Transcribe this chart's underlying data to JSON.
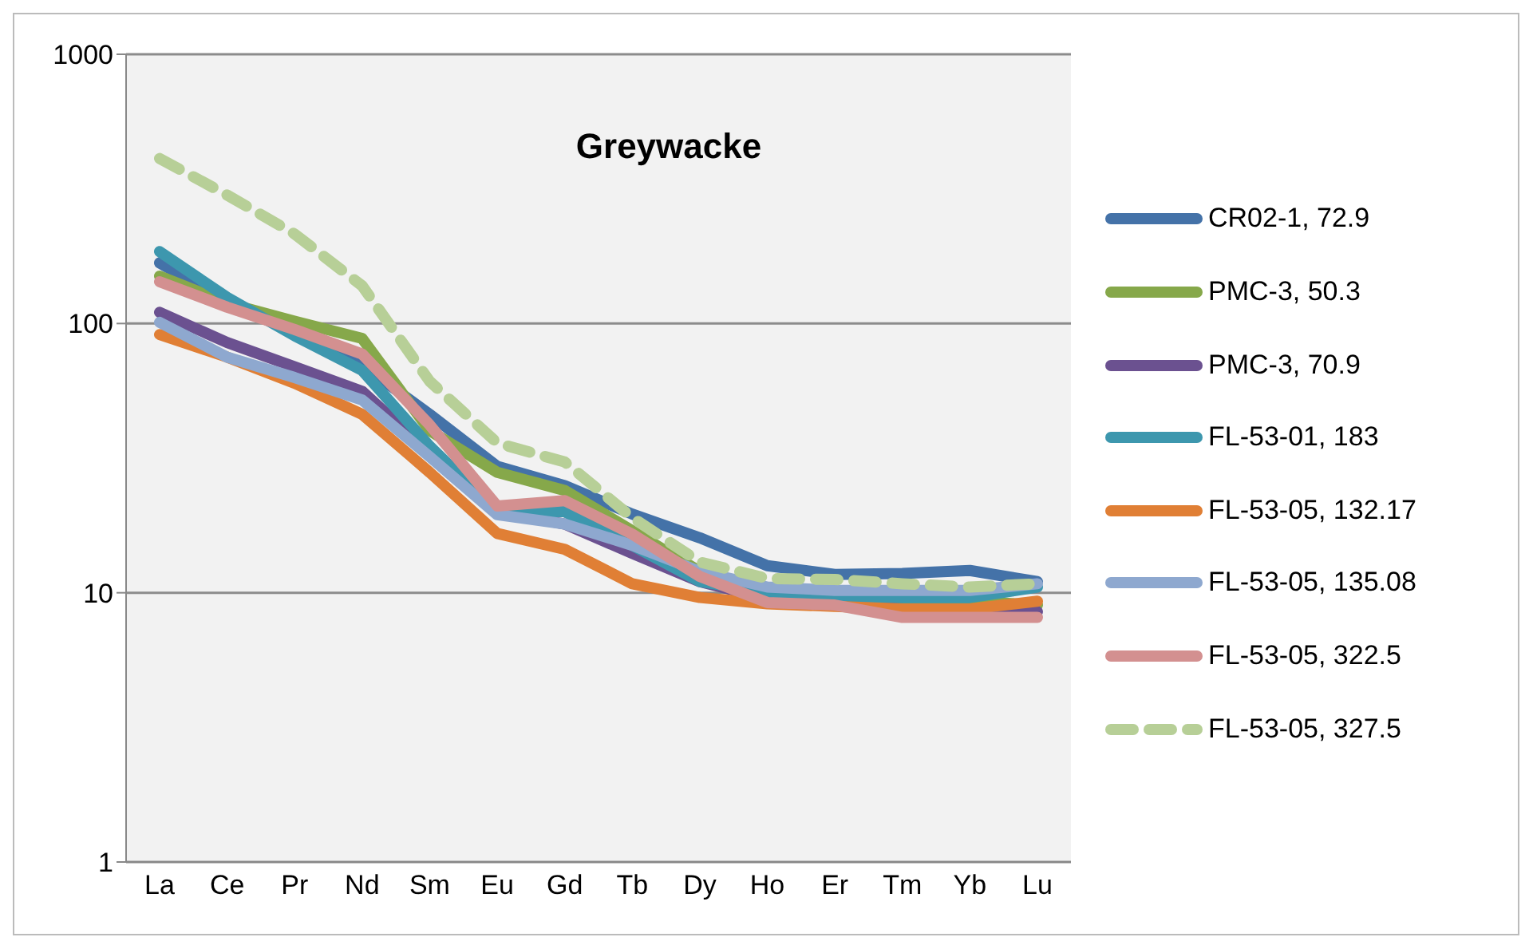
{
  "chart_data": {
    "type": "line",
    "title": "Greywacke",
    "categories": [
      "La",
      "Ce",
      "Pr",
      "Nd",
      "Sm",
      "Eu",
      "Gd",
      "Tb",
      "Dy",
      "Ho",
      "Er",
      "Tm",
      "Yb",
      "Lu"
    ],
    "log": "y",
    "ylim": [
      1,
      1000
    ],
    "yticks": [
      1,
      10,
      100,
      1000
    ],
    "grid": "y",
    "legend": "right",
    "marker": "none",
    "series": [
      {
        "name": "CR02-1, 72.9",
        "color": "#4472a8",
        "line_style": "solid",
        "values": [
          168,
          121,
          95,
          70,
          46,
          29.5,
          25,
          19.6,
          16,
          12.6,
          11.7,
          11.8,
          12.1,
          11
        ]
      },
      {
        "name": "PMC-3, 50.3",
        "color": "#86a84a",
        "line_style": "solid",
        "values": [
          150,
          119,
          102,
          88,
          40,
          28,
          24,
          17,
          12,
          10,
          9.5,
          9.3,
          9.3,
          9
        ]
      },
      {
        "name": "PMC-3, 70.9",
        "color": "#6b5190",
        "line_style": "solid",
        "values": [
          110,
          85,
          69,
          56,
          33,
          20,
          18,
          14,
          11,
          9.5,
          9.2,
          8.7,
          8.7,
          8.5
        ]
      },
      {
        "name": "FL-53-01, 183",
        "color": "#3d97ae",
        "line_style": "solid",
        "values": [
          185,
          125,
          90,
          67,
          35,
          20,
          20,
          15,
          11,
          10,
          9.7,
          9.6,
          9.6,
          10.5
        ]
      },
      {
        "name": "FL-53-05, 132.17",
        "color": "#e07f35",
        "line_style": "solid",
        "values": [
          91,
          75,
          60,
          46,
          28,
          16.6,
          14.5,
          10.8,
          9.6,
          9.1,
          8.9,
          8.7,
          8.7,
          9.3
        ]
      },
      {
        "name": "FL-53-05, 135.08",
        "color": "#8ea8cf",
        "line_style": "solid",
        "values": [
          101,
          75,
          63,
          52,
          32,
          19.5,
          18,
          15,
          12,
          10.5,
          10.2,
          10.2,
          10.2,
          10.8
        ]
      },
      {
        "name": "FL-53-05, 322.5",
        "color": "#d39090",
        "line_style": "solid",
        "values": [
          143,
          115,
          95,
          77,
          42,
          21,
          22,
          16.5,
          11.5,
          9.2,
          9,
          8.1,
          8.1,
          8.1
        ]
      },
      {
        "name": "FL-53-05, 327.5",
        "color": "#b7cf97",
        "line_style": "dashed",
        "values": [
          410,
          300,
          215,
          138,
          61,
          36,
          30.6,
          19,
          13,
          11.3,
          11.2,
          10.8,
          10.5,
          10.8
        ]
      }
    ]
  }
}
